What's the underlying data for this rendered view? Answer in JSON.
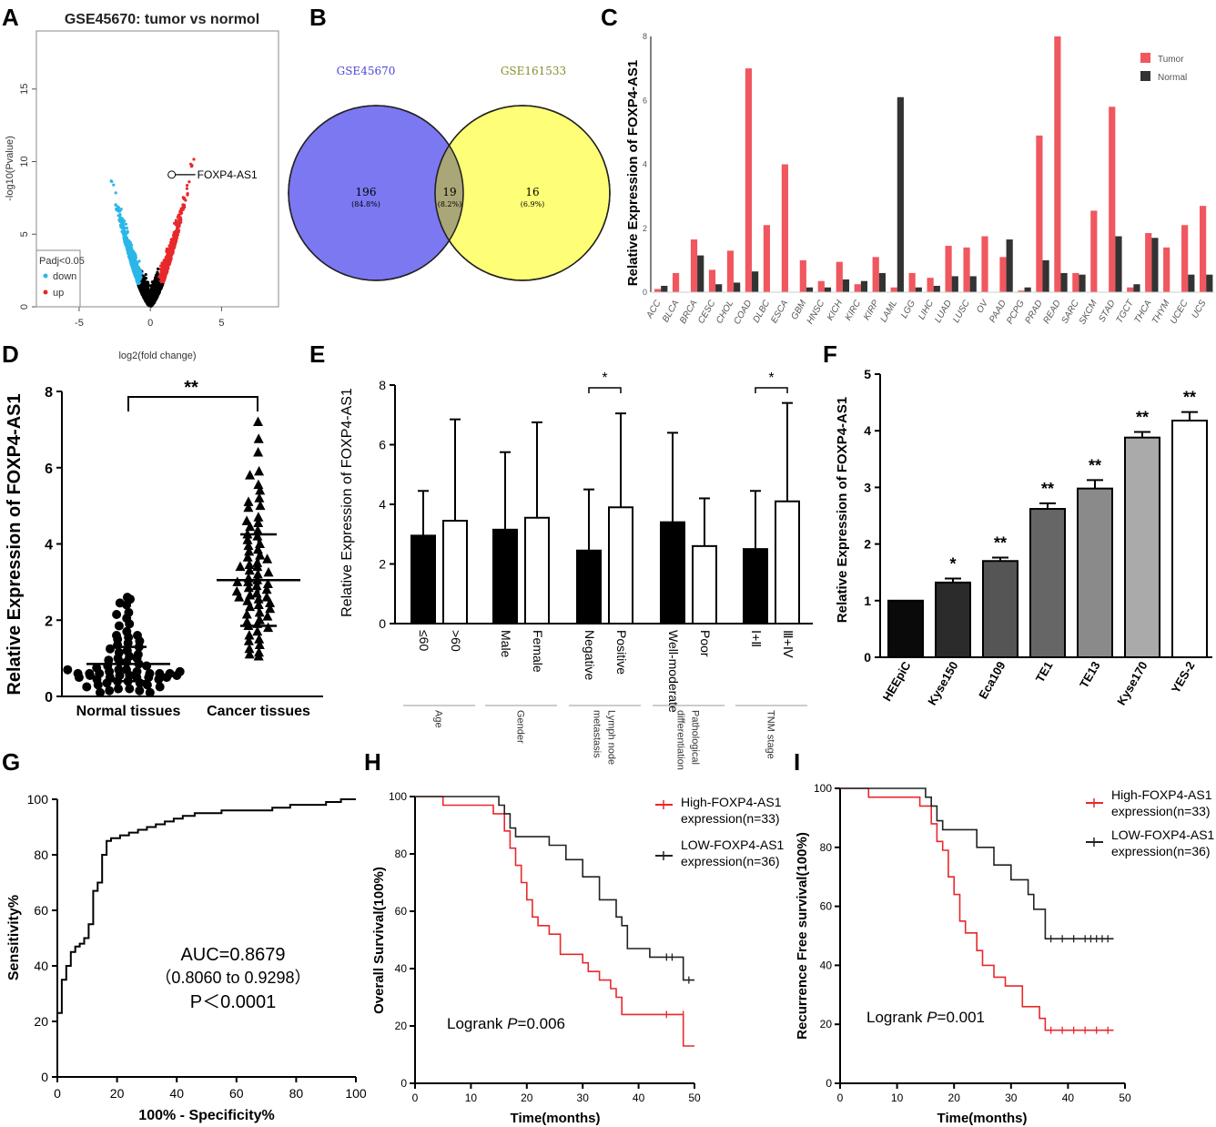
{
  "panel_labels": [
    "A",
    "B",
    "C",
    "D",
    "E",
    "F",
    "G",
    "H",
    "I"
  ],
  "chart_data": [
    {
      "id": "A",
      "type": "scatter",
      "title": "GSE45670: tumor vs normol",
      "xlabel": "log2(fold change)",
      "ylabel": "-log10(Pvalue)",
      "xlim": [
        -8,
        9
      ],
      "ylim": [
        0,
        19
      ],
      "xticks": [
        "-5",
        "0",
        "5"
      ],
      "yticks": [
        "0",
        "5",
        "10",
        "15"
      ],
      "legend": {
        "title": "Padj<0.05",
        "items": [
          "down",
          "up"
        ],
        "colors": [
          "#2ab7e8",
          "#e8282b"
        ]
      },
      "annotation": "FOXP4-AS1",
      "highlight_point": [
        1.5,
        9.1
      ]
    },
    {
      "id": "B",
      "type": "venn",
      "sets": [
        "GSE45670",
        "GSE161533"
      ],
      "left_only": "196",
      "left_pct": "(84.8%)",
      "overlap": "19",
      "overlap_pct": "(8.2%)",
      "right_only": "16",
      "right_pct": "(6.9%)",
      "colors": [
        "#7b78f2",
        "#ffff77",
        "#a9a777"
      ]
    },
    {
      "id": "C",
      "type": "bar",
      "ylabel": "Relative Expression of FOXP4-AS1",
      "ylim": [
        0,
        8
      ],
      "yticks": [
        "0",
        "2",
        "4",
        "6",
        "8"
      ],
      "categories": [
        "ACC",
        "BLCA",
        "BRCA",
        "CESC",
        "CHOL",
        "COAD",
        "DLBC",
        "ESCA",
        "GBM",
        "HNSC",
        "KICH",
        "KIRC",
        "KIRP",
        "LAML",
        "LGG",
        "LIHC",
        "LUAD",
        "LUSC",
        "OV",
        "PAAD",
        "PCPG",
        "PRAD",
        "READ",
        "SARC",
        "SKCM",
        "STAD",
        "TGCT",
        "THCA",
        "THYM",
        "UCEC",
        "UCS"
      ],
      "series": [
        {
          "name": "Tumor",
          "color": "#f0575e",
          "values": [
            0.1,
            0.6,
            1.65,
            0.7,
            1.3,
            7.0,
            2.1,
            4.0,
            1.0,
            0.35,
            0.95,
            0.25,
            1.1,
            0.15,
            0.6,
            0.45,
            1.45,
            1.4,
            1.75,
            1.1,
            0.05,
            4.9,
            8.0,
            0.6,
            2.55,
            5.8,
            0.15,
            1.85,
            1.4,
            2.1,
            2.7
          ]
        },
        {
          "name": "Normal",
          "color": "#333333",
          "values": [
            0.2,
            0.0,
            1.15,
            0.25,
            0.3,
            0.65,
            0.0,
            0.0,
            0.15,
            0.15,
            0.4,
            0.35,
            0.6,
            6.1,
            0.15,
            0.2,
            0.5,
            0.5,
            0.0,
            1.65,
            0.15,
            1.0,
            0.6,
            0.55,
            0.0,
            1.75,
            0.25,
            1.7,
            0.0,
            0.55,
            0.55
          ]
        }
      ]
    },
    {
      "id": "D",
      "type": "scatter",
      "ylabel": "Relative Expression of FOXP4-AS1",
      "ylim": [
        0,
        8
      ],
      "yticks": [
        "0",
        "2",
        "4",
        "6",
        "8"
      ],
      "categories": [
        "Normal tissues",
        "Cancer tissues"
      ],
      "mean": [
        0.85,
        3.05
      ],
      "sd": [
        0.45,
        1.2
      ],
      "significance": "**",
      "normal_values": [
        2.6,
        2.55,
        2.45,
        2.4,
        2.2,
        2.15,
        2.05,
        1.9,
        1.85,
        1.7,
        1.6,
        1.6,
        1.55,
        1.5,
        1.45,
        1.4,
        1.35,
        1.3,
        1.25,
        1.2,
        1.15,
        1.1,
        1.05,
        1.0,
        1.0,
        0.95,
        0.9,
        0.9,
        0.85,
        0.8,
        0.8,
        0.75,
        0.7,
        0.7,
        0.65,
        0.65,
        0.6,
        0.6,
        0.6,
        0.55,
        0.55,
        0.5,
        0.5,
        0.5,
        0.45,
        0.45,
        0.4,
        0.4,
        0.35,
        0.35,
        0.3,
        0.3,
        0.25,
        0.25,
        0.2,
        0.2,
        0.15,
        0.15,
        0.1,
        0.1,
        0.6,
        0.6,
        0.55,
        0.5,
        0.6,
        0.65,
        0.7,
        0.5,
        0.55
      ],
      "cancer_values": [
        7.2,
        6.75,
        6.4,
        5.9,
        5.8,
        5.55,
        5.4,
        5.2,
        5.1,
        5.0,
        4.95,
        4.7,
        4.6,
        4.55,
        4.45,
        4.35,
        4.25,
        4.2,
        4.1,
        4.0,
        3.95,
        3.85,
        3.8,
        3.7,
        3.65,
        3.6,
        3.5,
        3.45,
        3.4,
        3.3,
        3.25,
        3.2,
        3.1,
        3.05,
        3.0,
        2.95,
        2.9,
        2.85,
        2.8,
        2.75,
        2.7,
        2.65,
        2.6,
        2.55,
        2.5,
        2.45,
        2.4,
        2.35,
        2.3,
        2.2,
        2.15,
        2.1,
        2.0,
        1.95,
        1.9,
        1.85,
        1.8,
        1.7,
        1.6,
        1.5,
        1.45,
        1.35,
        1.25,
        1.15,
        1.1,
        1.05,
        3.0,
        2.6,
        3.4
      ]
    },
    {
      "id": "E",
      "type": "bar",
      "ylabel": "Relative Expression of FOXP4-AS1",
      "ylim": [
        0,
        8
      ],
      "yticks": [
        "0",
        "2",
        "4",
        "6",
        "8"
      ],
      "groups": [
        {
          "label": "Age",
          "categories": [
            "≤60",
            ">60"
          ],
          "values": [
            2.95,
            3.45
          ],
          "sd": [
            1.5,
            3.4
          ],
          "sig": ""
        },
        {
          "label": "Gender",
          "categories": [
            "Male",
            "Female"
          ],
          "values": [
            3.15,
            3.55
          ],
          "sd": [
            2.6,
            3.2
          ],
          "sig": ""
        },
        {
          "label": "Lymph node metastasis",
          "label_lines": [
            "metastasis",
            "Lymph node"
          ],
          "categories": [
            "Negative",
            "Positive"
          ],
          "values": [
            2.45,
            3.9
          ],
          "sd": [
            2.05,
            3.15
          ],
          "sig": "*"
        },
        {
          "label": "Pathological differentiation",
          "label_lines": [
            "differentiation",
            "Pathological"
          ],
          "categories": [
            "Well-moderate",
            "Poor"
          ],
          "values": [
            3.4,
            2.6
          ],
          "sd": [
            3.0,
            1.6
          ],
          "sig": ""
        },
        {
          "label": "TNM stage",
          "categories": [
            "Ⅰ+Ⅱ",
            "Ⅲ+Ⅳ"
          ],
          "values": [
            2.5,
            4.1
          ],
          "sd": [
            1.95,
            3.3
          ],
          "sig": "*"
        }
      ]
    },
    {
      "id": "F",
      "type": "bar",
      "ylabel": "Relative Expression of FOXP4-AS1",
      "ylim": [
        0,
        5
      ],
      "yticks": [
        "0",
        "1",
        "2",
        "3",
        "4",
        "5"
      ],
      "categories": [
        "HEEpiC",
        "Kyse150",
        "Eca109",
        "TE1",
        "TE13",
        "Kyse170",
        "YES-2"
      ],
      "values": [
        1.0,
        1.32,
        1.7,
        2.62,
        2.98,
        3.88,
        4.18
      ],
      "err": [
        0.0,
        0.07,
        0.06,
        0.1,
        0.15,
        0.1,
        0.15
      ],
      "colors": [
        "#0a0a0a",
        "#2b2b2b",
        "#555555",
        "#666666",
        "#8a8a8a",
        "#aaaaaa",
        "#ffffff"
      ],
      "sig": [
        "",
        "*",
        "**",
        "**",
        "**",
        "**",
        "**"
      ]
    },
    {
      "id": "G",
      "type": "line",
      "xlabel": "100% - Specificity%",
      "ylabel": "Sensitivity%",
      "xlim": [
        0,
        100
      ],
      "ylim": [
        0,
        100
      ],
      "xticks": [
        "0",
        "20",
        "40",
        "60",
        "80",
        "100"
      ],
      "yticks": [
        "0",
        "20",
        "40",
        "60",
        "80",
        "100"
      ],
      "auc_text": "AUC=0.8679",
      "ci_text": "（0.8060 to 0.9298）",
      "p_text": "P＜0.0001",
      "roc_x": [
        0,
        0,
        1.5,
        1.5,
        3,
        3,
        4.5,
        4.5,
        6,
        6,
        7.5,
        7.5,
        9,
        9,
        10.5,
        10.5,
        12,
        12,
        13.5,
        13.5,
        15,
        15,
        16.5,
        16.5,
        18,
        18,
        21,
        21,
        24,
        24,
        27,
        27,
        30,
        30,
        33,
        33,
        36,
        36,
        39,
        39,
        42,
        42,
        46,
        46,
        50,
        50,
        55,
        55,
        60,
        60,
        66,
        66,
        72,
        72,
        78,
        78,
        84,
        84,
        90,
        90,
        95,
        95,
        100
      ],
      "roc_y": [
        0,
        23,
        23,
        35,
        35,
        40,
        40,
        45,
        45,
        47,
        47,
        48,
        48,
        50,
        50,
        55,
        55,
        67,
        67,
        70,
        70,
        80,
        80,
        85,
        85,
        86,
        86,
        87,
        87,
        88,
        88,
        89,
        89,
        90,
        90,
        91,
        91,
        92,
        92,
        93,
        93,
        94,
        94,
        95,
        95,
        95,
        95,
        96,
        96,
        96,
        96,
        96,
        96,
        97,
        97,
        98,
        98,
        98,
        98,
        99,
        99,
        100,
        100
      ]
    },
    {
      "id": "H",
      "type": "line",
      "xlabel": "Time(months)",
      "ylabel": "Overall Survival(100%)",
      "xlim": [
        0,
        50
      ],
      "ylim": [
        0,
        100
      ],
      "xticks": [
        "0",
        "10",
        "20",
        "30",
        "40",
        "50"
      ],
      "yticks": [
        "0",
        "20",
        "40",
        "60",
        "80",
        "100"
      ],
      "logrank_label": "Logrank ",
      "logrank_p": "P",
      "logrank_value": "=0.006",
      "series": [
        {
          "name": "High-FOXP4-AS1",
          "name2": "expression(n=33)",
          "color": "#e8282b",
          "t": [
            0,
            5,
            5,
            14,
            14,
            16,
            16,
            17,
            17,
            18,
            18,
            19,
            19,
            20,
            20,
            21,
            21,
            22,
            22,
            24,
            24,
            26,
            26,
            30,
            30,
            31,
            31,
            33,
            33,
            35,
            35,
            36,
            36,
            37,
            37,
            48,
            48,
            50
          ],
          "s": [
            100,
            100,
            97,
            97,
            94,
            94,
            88,
            88,
            82,
            82,
            76,
            76,
            70,
            70,
            64,
            64,
            58,
            58,
            55,
            55,
            52,
            52,
            45,
            45,
            42,
            42,
            39,
            39,
            36,
            36,
            33,
            33,
            30,
            30,
            24,
            24,
            13,
            13
          ]
        },
        {
          "name": "LOW-FOXP4-AS1",
          "name2": "expression(n=36)",
          "color": "#222222",
          "t": [
            0,
            15,
            15,
            16,
            16,
            17,
            17,
            18,
            18,
            24,
            24,
            27,
            27,
            30,
            30,
            33,
            33,
            36,
            36,
            37,
            37,
            38,
            38,
            42,
            42,
            48,
            48,
            50
          ],
          "s": [
            100,
            100,
            97,
            97,
            94,
            94,
            89,
            89,
            86,
            86,
            83,
            83,
            78,
            78,
            72,
            72,
            64,
            64,
            58,
            58,
            55,
            55,
            47,
            47,
            44,
            44,
            36,
            36
          ]
        }
      ]
    },
    {
      "id": "I",
      "type": "line",
      "xlabel": "Time(months)",
      "ylabel": "Recurrence Free survival(100%)",
      "xlim": [
        0,
        50
      ],
      "ylim": [
        0,
        100
      ],
      "xticks": [
        "0",
        "10",
        "20",
        "30",
        "40",
        "50"
      ],
      "yticks": [
        "0",
        "20",
        "40",
        "60",
        "80",
        "100"
      ],
      "logrank_label": "Logrank ",
      "logrank_p": "P",
      "logrank_value": "=0.001",
      "series": [
        {
          "name": "High-FOXP4-AS1",
          "name2": "expression(n=33)",
          "color": "#e8282b",
          "t": [
            0,
            5,
            5,
            14,
            14,
            16,
            16,
            17,
            17,
            18,
            18,
            19,
            19,
            20,
            20,
            21,
            21,
            22,
            22,
            24,
            24,
            25,
            25,
            27,
            27,
            29,
            29,
            32,
            32,
            35,
            35,
            36,
            36,
            48
          ],
          "s": [
            100,
            100,
            97,
            97,
            94,
            94,
            88,
            88,
            82,
            82,
            79,
            79,
            70,
            70,
            64,
            64,
            55,
            55,
            51,
            51,
            45,
            45,
            40,
            40,
            36,
            36,
            33,
            33,
            26,
            26,
            22,
            22,
            18,
            18
          ]
        },
        {
          "name": "LOW-FOXP4-AS1",
          "name2": "expression(n=36)",
          "color": "#222222",
          "t": [
            0,
            15,
            15,
            16,
            16,
            17,
            17,
            18,
            18,
            24,
            24,
            27,
            27,
            30,
            30,
            33,
            33,
            34,
            34,
            36,
            36,
            48
          ],
          "s": [
            100,
            100,
            97,
            97,
            94,
            94,
            89,
            89,
            86,
            86,
            80,
            80,
            74,
            74,
            69,
            69,
            64,
            64,
            59,
            59,
            49,
            49
          ]
        }
      ]
    }
  ]
}
